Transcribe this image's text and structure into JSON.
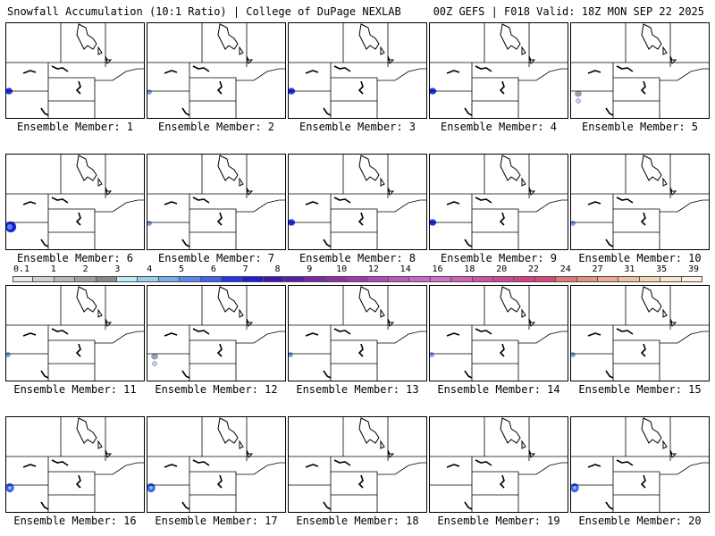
{
  "header": {
    "left": "Snowfall Accumulation (10:1 Ratio) | College of DuPage NEXLAB",
    "right": "00Z GEFS | F018 Valid: 18Z MON SEP 22 2025"
  },
  "map_features": [
    "state-boundaries",
    "great-lakes",
    "missouri-river"
  ],
  "members": [
    {
      "label": "Ensemble Member: 1",
      "snow": "small"
    },
    {
      "label": "Ensemble Member: 2",
      "snow": "tiny"
    },
    {
      "label": "Ensemble Member: 3",
      "snow": "small"
    },
    {
      "label": "Ensemble Member: 4",
      "snow": "small"
    },
    {
      "label": "Ensemble Member: 5",
      "snow": "light"
    },
    {
      "label": "Ensemble Member: 6",
      "snow": "heavy"
    },
    {
      "label": "Ensemble Member: 7",
      "snow": "tiny"
    },
    {
      "label": "Ensemble Member: 8",
      "snow": "small"
    },
    {
      "label": "Ensemble Member: 9",
      "snow": "small"
    },
    {
      "label": "Ensemble Member: 10",
      "snow": "tiny"
    },
    {
      "label": "Ensemble Member: 11",
      "snow": "tiny"
    },
    {
      "label": "Ensemble Member: 12",
      "snow": "light"
    },
    {
      "label": "Ensemble Member: 13",
      "snow": "tiny"
    },
    {
      "label": "Ensemble Member: 14",
      "snow": "tiny"
    },
    {
      "label": "Ensemble Member: 15",
      "snow": "tiny"
    },
    {
      "label": "Ensemble Member: 16",
      "snow": "medium"
    },
    {
      "label": "Ensemble Member: 17",
      "snow": "medium"
    },
    {
      "label": "Ensemble Member: 18",
      "snow": "none"
    },
    {
      "label": "Ensemble Member: 19",
      "snow": "none"
    },
    {
      "label": "Ensemble Member: 20",
      "snow": "medium"
    }
  ],
  "colorbar": {
    "labels": [
      "0.1",
      "1",
      "2",
      "3",
      "4",
      "5",
      "6",
      "7",
      "8",
      "9",
      "10",
      "12",
      "14",
      "16",
      "18",
      "20",
      "22",
      "24",
      "27",
      "31",
      "35",
      "39"
    ],
    "colors": [
      "#e8e8e8",
      "#d0d0d0",
      "#b8b8b8",
      "#a0a0a0",
      "#888888",
      "#b8eef4",
      "#98d0ec",
      "#78aaf0",
      "#5a88f0",
      "#3f62f0",
      "#2233f0",
      "#1e1ed8",
      "#3c18b0",
      "#5a1ea8",
      "#7a28a8",
      "#902ea8",
      "#a038b0",
      "#b048b8",
      "#c058c0",
      "#c868c8",
      "#d070c8",
      "#d060b8",
      "#d050a8",
      "#d04898",
      "#d04088",
      "#d84878",
      "#e07878",
      "#e89080",
      "#eca890",
      "#f0c0a0",
      "#f4d4b4",
      "#f8e4cc",
      "#fcf0e0"
    ]
  }
}
